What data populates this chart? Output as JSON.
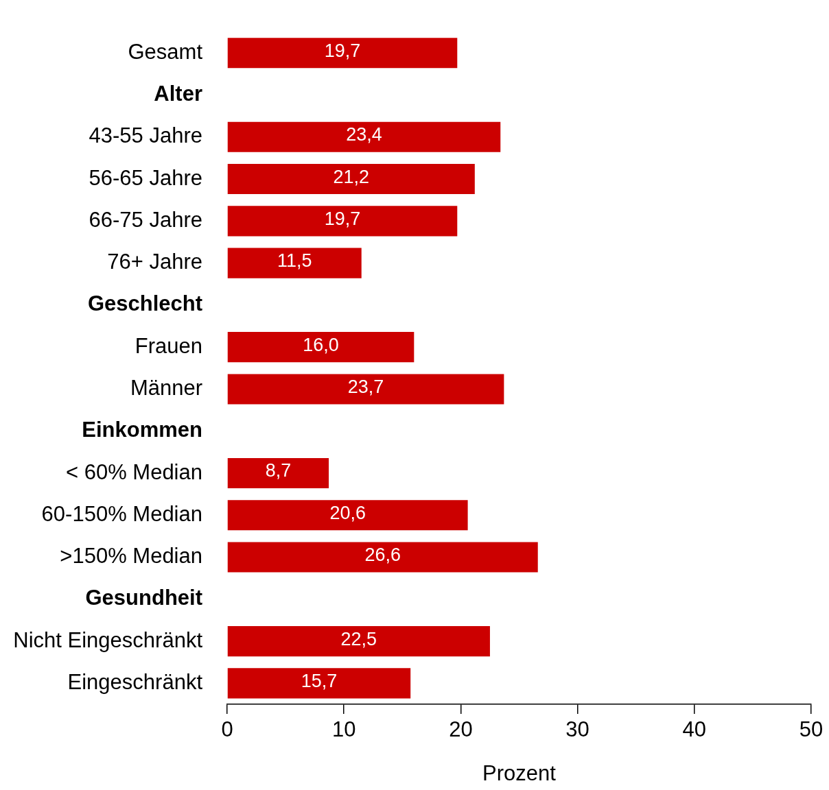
{
  "chart_data": {
    "type": "bar",
    "orientation": "horizontal",
    "xlabel": "Prozent",
    "categories": [
      "Gesamt",
      "Alter",
      "43-55 Jahre",
      "56-65 Jahre",
      "66-75 Jahre",
      "76+ Jahre",
      "Geschlecht",
      "Frauen",
      "Männer",
      "Einkommen",
      "< 60% Median",
      "60-150% Median",
      ">150% Median",
      "Gesundheit",
      "Nicht Eingeschränkt",
      "Eingeschränkt"
    ],
    "values": [
      19.7,
      null,
      23.4,
      21.2,
      19.7,
      11.5,
      null,
      16.0,
      23.7,
      null,
      8.7,
      20.6,
      26.6,
      null,
      22.5,
      15.7
    ],
    "value_labels": [
      "19,7",
      null,
      "23,4",
      "21,2",
      "19,7",
      "11,5",
      null,
      "16,0",
      "23,7",
      null,
      "8,7",
      "20,6",
      "26,6",
      null,
      "22,5",
      "15,7"
    ],
    "color": "#cc0000",
    "xlim": [
      0,
      50
    ],
    "xticks": [
      0,
      10,
      20,
      30,
      40,
      50
    ],
    "grid": false,
    "legend": false
  }
}
